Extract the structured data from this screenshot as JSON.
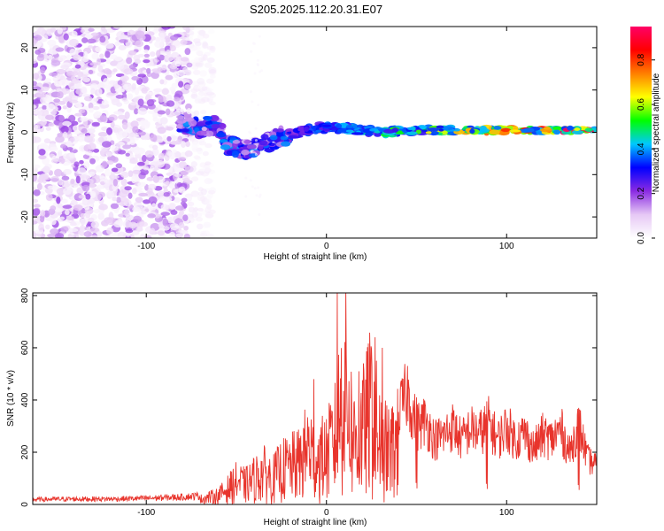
{
  "title": "S205.2025.112.20.31.E07",
  "colors": {
    "snr_line": "#e8342c",
    "frame": "#000000",
    "background": "#ffffff"
  },
  "chart_data": [
    {
      "type": "heatmap",
      "id": "spectrogram",
      "xlabel": "Height of straight line (km)",
      "ylabel": "Frequency (Hz)",
      "xlim": [
        -163,
        150
      ],
      "ylim": [
        -25,
        25
      ],
      "xticks": [
        -100,
        0,
        100
      ],
      "xtick_labels": [
        "-100",
        "0",
        "100"
      ],
      "yticks": [
        -20,
        -10,
        0,
        10,
        20
      ],
      "ytick_labels": [
        "-20",
        "-10",
        "0",
        "10",
        "20"
      ],
      "grid": false,
      "colorbar": {
        "label": "Normalized spectral amplitude",
        "range": [
          0,
          0.95
        ],
        "ticks": [
          0,
          0.2,
          0.4,
          0.6,
          0.8
        ],
        "tick_labels": [
          "0.0",
          "0.2",
          "0.4",
          "0.6",
          "0.8"
        ],
        "colormap": [
          "#ffffff",
          "#e6c8f5",
          "#8a2be2",
          "#0000ff",
          "#00c8ff",
          "#00ff00",
          "#ffff00",
          "#ff7f00",
          "#ff0000",
          "#ff0066"
        ]
      },
      "regions": [
        {
          "name": "broadband noise",
          "x": [
            -163,
            -76
          ],
          "freq": [
            -25,
            25
          ],
          "amplitude": [
            0.02,
            0.2
          ]
        },
        {
          "name": "diffuse fringe",
          "x": [
            -76,
            -63
          ],
          "freq": [
            -25,
            25
          ],
          "amplitude": [
            0.01,
            0.05
          ]
        },
        {
          "name": "early signal",
          "x": [
            -82,
            -20
          ],
          "freq": [
            -7,
            4
          ],
          "amplitude": [
            0.1,
            0.4
          ]
        },
        {
          "name": "main tone",
          "x": [
            -20,
            150
          ],
          "freq": [
            -1,
            2
          ],
          "amplitude": [
            0.2,
            0.95
          ]
        }
      ],
      "main_tone_freq": [
        [
          -80,
          2
        ],
        [
          -70,
          1
        ],
        [
          -60,
          2
        ],
        [
          -55,
          -3
        ],
        [
          -45,
          -4
        ],
        [
          -35,
          -3
        ],
        [
          -25,
          -1
        ],
        [
          -15,
          0
        ],
        [
          -5,
          1
        ],
        [
          10,
          1
        ],
        [
          30,
          0
        ],
        [
          50,
          0.5
        ],
        [
          80,
          0.5
        ],
        [
          100,
          0.5
        ],
        [
          120,
          0.5
        ],
        [
          150,
          0.5
        ]
      ]
    },
    {
      "type": "line",
      "id": "snr",
      "xlabel": "Height of straight line (km)",
      "ylabel": "SNR (10 * v/v)",
      "xlim": [
        -163,
        150
      ],
      "ylim": [
        0,
        810
      ],
      "xticks": [
        -100,
        0,
        100
      ],
      "xtick_labels": [
        "-100",
        "0",
        "100"
      ],
      "yticks": [
        0,
        200,
        400,
        600,
        800
      ],
      "ytick_labels": [
        "0",
        "200",
        "400",
        "600",
        "800"
      ],
      "grid": false,
      "series": [
        {
          "x": [
            -163,
            -140,
            -120,
            -100,
            -80,
            -70,
            -60,
            -55,
            -50,
            -45,
            -40,
            -35,
            -30,
            -25,
            -20,
            -15,
            -10,
            -5,
            0,
            5,
            10,
            15,
            20,
            25,
            30,
            35,
            40,
            45,
            50,
            55,
            60,
            65,
            70,
            75,
            80,
            85,
            90,
            95,
            100,
            105,
            110,
            115,
            120,
            125,
            130,
            135,
            140,
            145,
            150
          ],
          "values": [
            20,
            22,
            22,
            25,
            30,
            35,
            60,
            100,
            150,
            130,
            170,
            210,
            170,
            230,
            250,
            270,
            380,
            300,
            320,
            440,
            810,
            420,
            480,
            640,
            400,
            340,
            420,
            520,
            360,
            390,
            300,
            320,
            360,
            300,
            350,
            330,
            380,
            300,
            360,
            300,
            330,
            260,
            320,
            300,
            350,
            240,
            370,
            210,
            180
          ]
        }
      ],
      "peaks": [
        {
          "x": 6,
          "y": 810
        },
        {
          "x": 27,
          "y": 640
        },
        {
          "x": 31,
          "y": 600
        },
        {
          "x": 18,
          "y": 510
        },
        {
          "x": -7,
          "y": 480
        },
        {
          "x": 50,
          "y": 410
        },
        {
          "x": 89,
          "y": 395
        },
        {
          "x": 140,
          "y": 370
        }
      ]
    }
  ]
}
